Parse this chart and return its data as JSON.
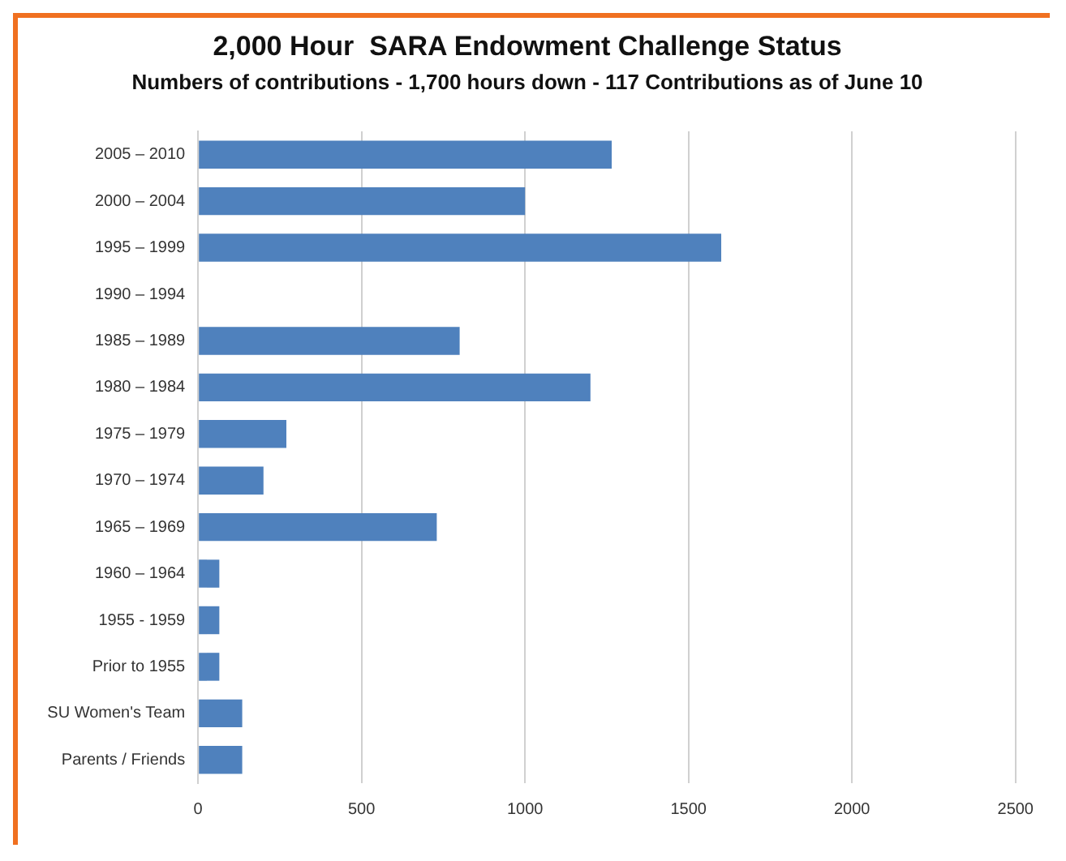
{
  "chart_data": {
    "type": "bar",
    "orientation": "horizontal",
    "title": "2,000 Hour  SARA Endowment Challenge Status",
    "subtitle": "Numbers of contributions - 1,700 hours down - 117 Contributions as of June 10",
    "categories": [
      "2005 – 2010",
      "2000 – 2004",
      "1995 – 1999",
      "1990 – 1994",
      "1985 – 1989",
      "1980 – 1984",
      "1975 – 1979",
      "1970 – 1974",
      "1965 – 1969",
      "1960 – 1964",
      "1955 - 1959",
      "Prior to 1955",
      "SU Women's Team",
      "Parents / Friends"
    ],
    "values": [
      1265,
      1000,
      1600,
      0,
      800,
      1200,
      270,
      200,
      730,
      65,
      65,
      65,
      135,
      135
    ],
    "color": "#4f81bd",
    "xlim": [
      0,
      2500
    ],
    "xticks": [
      0,
      500,
      1000,
      1500,
      2000,
      2500
    ],
    "grid": "x",
    "legend": false
  }
}
